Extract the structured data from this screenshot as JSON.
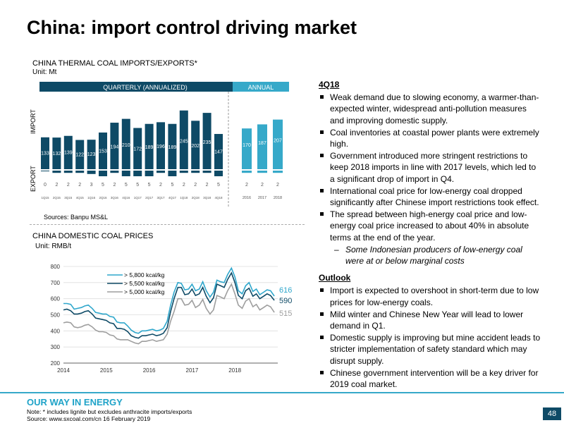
{
  "title": "China: import control driving market",
  "chart1": {
    "title": "CHINA THERMAL COAL IMPORTS/EXPORTS*",
    "unit": "Unit: Mt",
    "quarterly_label": "QUARTERLY (ANNUALIZED)",
    "annual_label": "ANNUAL",
    "import_label": "IMPORT",
    "export_label": "EXPORT",
    "source": "Sources: Banpu MS&L",
    "colors": {
      "quarterly": "#0e4a66",
      "annual": "#36a9c9"
    }
  },
  "chart2": {
    "title": "CHINA DOMESTIC COAL PRICES",
    "unit": "Unit: RMB/t",
    "colors": {
      "s5800": "#2fa7cc",
      "s5500": "#0e4a66",
      "s5000": "#9e9e9e"
    }
  },
  "chart_data": [
    {
      "type": "bar",
      "title": "CHINA THERMAL COAL IMPORTS/EXPORTS*",
      "unit": "Mt",
      "panels": [
        {
          "name": "QUARTERLY (ANNUALIZED)",
          "categories": [
            "1Q15",
            "2Q15",
            "3Q15",
            "4Q15",
            "1Q16",
            "2Q16",
            "3Q16",
            "4Q16",
            "1Q17",
            "2Q17",
            "3Q17",
            "4Q17",
            "1Q18",
            "2Q18",
            "3Q18",
            "4Q18"
          ],
          "import": [
            133,
            132,
            139,
            122,
            123,
            153,
            194,
            210,
            172,
            189,
            196,
            189,
            245,
            202,
            235,
            147
          ],
          "import_heights": [
            133,
            132,
            139,
            122,
            123,
            153,
            194,
            210,
            172,
            189,
            196,
            189,
            245,
            202,
            235,
            147
          ],
          "export": [
            0,
            2,
            2,
            2,
            3,
            5,
            2,
            5,
            5,
            5,
            2,
            5,
            2,
            2,
            2,
            5
          ],
          "export_labels": [
            "0",
            "2",
            "2",
            "2",
            "3",
            "5",
            "2",
            "5",
            "5",
            "5",
            "2",
            "5",
            "2",
            "2",
            "2",
            "5"
          ]
        },
        {
          "name": "ANNUAL",
          "categories": [
            "2016",
            "2017",
            "2018"
          ],
          "import": [
            170,
            187,
            207
          ],
          "import_heights": [
            170,
            187,
            207
          ],
          "export": [
            2,
            2,
            2
          ],
          "export_labels": [
            "2",
            "2",
            "2"
          ]
        }
      ]
    },
    {
      "type": "line",
      "title": "CHINA DOMESTIC COAL PRICES",
      "unit": "RMB/t",
      "ylim": [
        200,
        800
      ],
      "yticks": [
        200,
        300,
        400,
        500,
        600,
        700,
        800
      ],
      "xlim": [
        2014,
        2019
      ],
      "xticks": [
        "2014",
        "2015",
        "2016",
        "2017",
        "2018"
      ],
      "legend_position": "top-center",
      "series": [
        {
          "name": "> 5,800 kcal/kg",
          "end_label": "616",
          "x": [
            2014.0,
            2014.08,
            2014.17,
            2014.25,
            2014.33,
            2014.42,
            2014.5,
            2014.58,
            2014.67,
            2014.75,
            2014.83,
            2014.92,
            2015.0,
            2015.08,
            2015.17,
            2015.25,
            2015.33,
            2015.42,
            2015.5,
            2015.58,
            2015.67,
            2015.75,
            2015.83,
            2015.92,
            2016.0,
            2016.08,
            2016.17,
            2016.25,
            2016.33,
            2016.42,
            2016.5,
            2016.58,
            2016.67,
            2016.75,
            2016.83,
            2016.92,
            2017.0,
            2017.08,
            2017.17,
            2017.25,
            2017.33,
            2017.42,
            2017.5,
            2017.58,
            2017.67,
            2017.75,
            2017.83,
            2017.92,
            2018.0,
            2018.08,
            2018.17,
            2018.25,
            2018.33,
            2018.42,
            2018.5,
            2018.58,
            2018.67,
            2018.75,
            2018.83,
            2018.92
          ],
          "y": [
            570,
            570,
            565,
            535,
            540,
            545,
            555,
            560,
            540,
            515,
            510,
            505,
            505,
            490,
            485,
            455,
            450,
            450,
            430,
            405,
            390,
            385,
            400,
            400,
            405,
            410,
            400,
            405,
            415,
            460,
            560,
            640,
            700,
            695,
            655,
            660,
            690,
            650,
            660,
            705,
            650,
            610,
            640,
            715,
            705,
            700,
            750,
            790,
            735,
            650,
            630,
            680,
            700,
            645,
            660,
            625,
            640,
            655,
            650,
            616
          ]
        },
        {
          "name": "> 5,500 kcal/kg",
          "end_label": "590",
          "x": [
            2014.0,
            2014.08,
            2014.17,
            2014.25,
            2014.33,
            2014.42,
            2014.5,
            2014.58,
            2014.67,
            2014.75,
            2014.83,
            2014.92,
            2015.0,
            2015.08,
            2015.17,
            2015.25,
            2015.33,
            2015.42,
            2015.5,
            2015.58,
            2015.67,
            2015.75,
            2015.83,
            2015.92,
            2016.0,
            2016.08,
            2016.17,
            2016.25,
            2016.33,
            2016.42,
            2016.5,
            2016.58,
            2016.67,
            2016.75,
            2016.83,
            2016.92,
            2017.0,
            2017.08,
            2017.17,
            2017.25,
            2017.33,
            2017.42,
            2017.5,
            2017.58,
            2017.67,
            2017.75,
            2017.83,
            2017.92,
            2018.0,
            2018.08,
            2018.17,
            2018.25,
            2018.33,
            2018.42,
            2018.5,
            2018.58,
            2018.67,
            2018.75,
            2018.83,
            2018.92
          ],
          "y": [
            530,
            535,
            525,
            505,
            505,
            510,
            520,
            525,
            505,
            480,
            475,
            470,
            465,
            450,
            445,
            415,
            415,
            410,
            395,
            370,
            360,
            355,
            370,
            370,
            375,
            380,
            370,
            375,
            385,
            420,
            520,
            600,
            670,
            670,
            625,
            630,
            660,
            620,
            630,
            670,
            615,
            575,
            605,
            690,
            680,
            670,
            720,
            760,
            700,
            620,
            600,
            650,
            665,
            615,
            630,
            600,
            615,
            630,
            620,
            590
          ]
        },
        {
          "name": "> 5,000 kcal/kg",
          "end_label": "515",
          "x": [
            2014.0,
            2014.08,
            2014.17,
            2014.25,
            2014.33,
            2014.42,
            2014.5,
            2014.58,
            2014.67,
            2014.75,
            2014.83,
            2014.92,
            2015.0,
            2015.08,
            2015.17,
            2015.25,
            2015.33,
            2015.42,
            2015.5,
            2015.58,
            2015.67,
            2015.75,
            2015.83,
            2015.92,
            2016.0,
            2016.08,
            2016.17,
            2016.25,
            2016.33,
            2016.42,
            2016.5,
            2016.58,
            2016.67,
            2016.75,
            2016.83,
            2016.92,
            2017.0,
            2017.08,
            2017.17,
            2017.25,
            2017.33,
            2017.42,
            2017.5,
            2017.58,
            2017.67,
            2017.75,
            2017.83,
            2017.92,
            2018.0,
            2018.08,
            2018.17,
            2018.25,
            2018.33,
            2018.42,
            2018.5,
            2018.58,
            2018.67,
            2018.75,
            2018.83,
            2018.92
          ],
          "y": [
            450,
            455,
            450,
            425,
            420,
            425,
            435,
            440,
            425,
            405,
            395,
            395,
            390,
            375,
            370,
            350,
            345,
            345,
            345,
            335,
            325,
            320,
            335,
            335,
            340,
            345,
            335,
            340,
            345,
            380,
            460,
            520,
            600,
            600,
            560,
            565,
            590,
            545,
            560,
            595,
            540,
            505,
            530,
            620,
            610,
            600,
            650,
            690,
            630,
            560,
            540,
            585,
            600,
            550,
            565,
            530,
            545,
            560,
            550,
            515
          ]
        }
      ]
    }
  ],
  "bullets": {
    "heading_4q18": "4Q18",
    "items_4q18": [
      "Weak demand due to slowing economy, a warmer-than-expected winter, widespread anti-pollution measures and improving domestic supply.",
      "Coal inventories at coastal power plants were extremely high.",
      "Government introduced more stringent restrictions to keep 2018 imports in line with 2017 levels, which led to a significant drop of import in Q4.",
      "International coal price for low-energy coal dropped significantly after Chinese import restrictions took effect.",
      "The spread between high-energy coal price and low-energy coal price increased to about 40% in absolute terms at the end of the year."
    ],
    "sub_item": "Some Indonesian producers of low-energy coal were at or below marginal costs",
    "sub_dash": "–",
    "heading_outlook": "Outlook",
    "items_outlook": [
      "Import is expected to overshoot in short-term due to low prices for low-energy coals.",
      "Mild winter and Chinese New Year will lead to lower demand in Q1.",
      "Domestic supply is improving but mine accident leads to stricter implementation of safety standard which may disrupt supply.",
      "Chinese government intervention will be a key driver for 2019 coal market."
    ]
  },
  "footer": {
    "brand": "OUR WAY IN ENERGY",
    "note": "Note: * includes lignite but excludes anthracite imports/exports",
    "source": "Source: www.sxcoal.com/cn  16 February 2019",
    "page": "48"
  }
}
